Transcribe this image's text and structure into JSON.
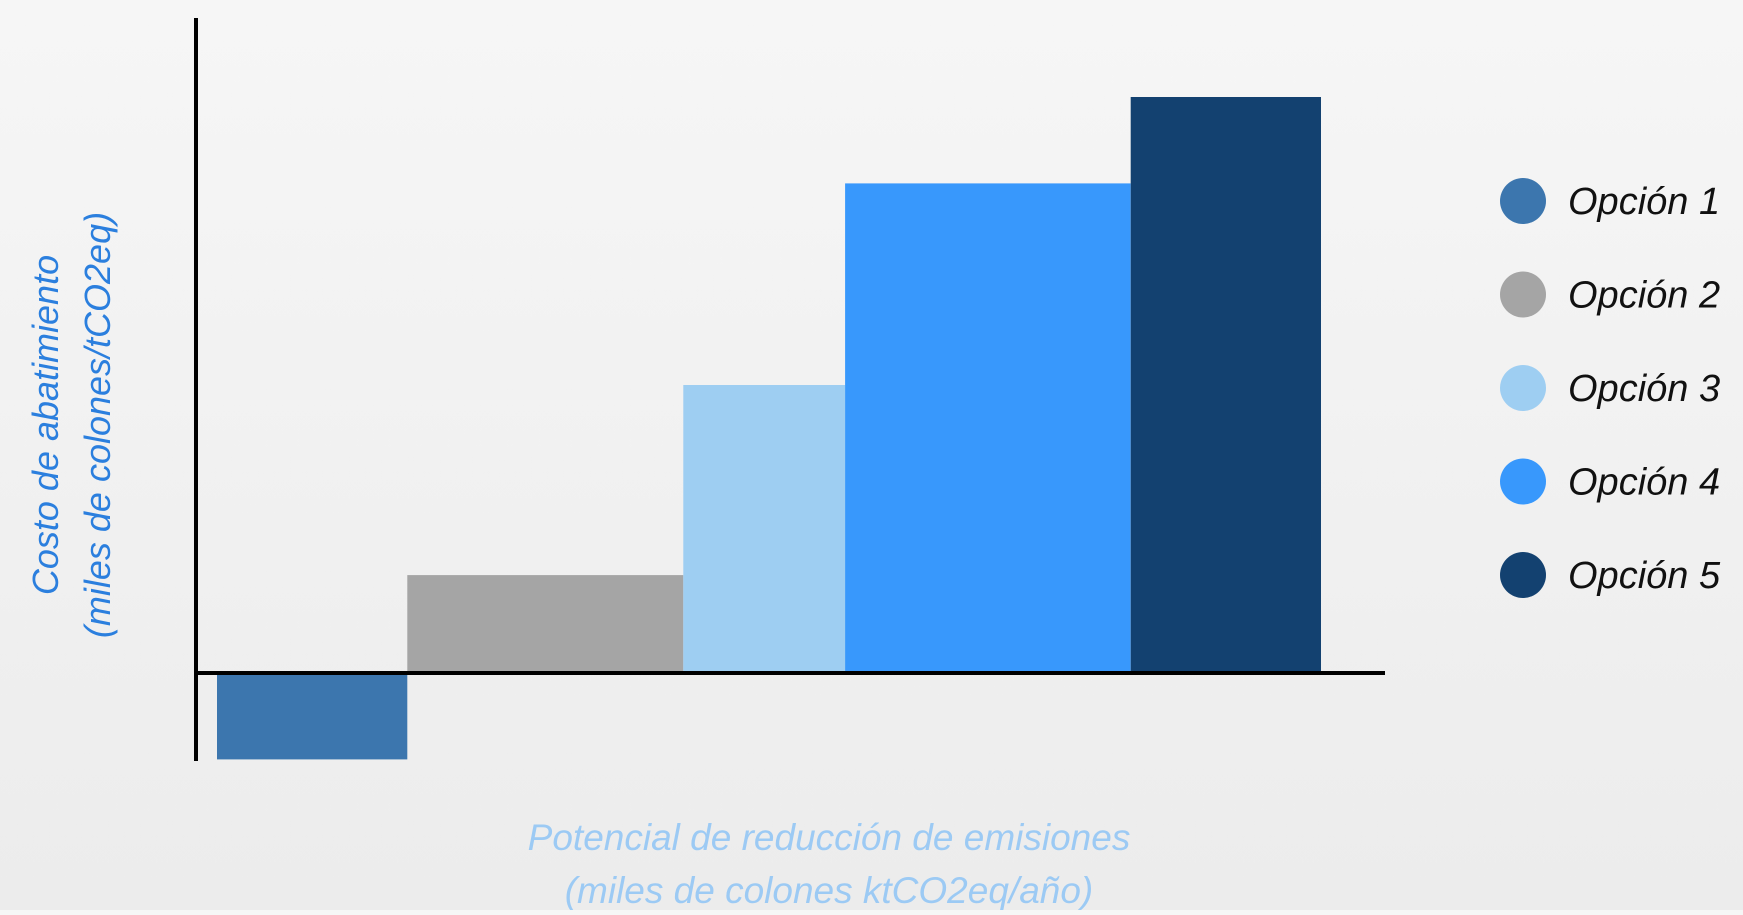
{
  "chart_data": {
    "type": "bar",
    "subtype": "marginal-abatement-cost-curve",
    "xlabel_lines": [
      "Potencial de reducción de emisiones",
      "(miles de colones ktCO2eq/año)"
    ],
    "ylabel_lines": [
      "Costo de abatimiento",
      "(miles de colones/tCO2eq)"
    ],
    "x_tick_labels": [],
    "y_tick_labels": [],
    "grid": false,
    "legend_position": "right",
    "ylim": [
      -1.5,
      10
    ],
    "series": [
      {
        "name": "Opción 1",
        "width": 2.0,
        "value": -1.5,
        "color": "#3c76ae"
      },
      {
        "name": "Opción 2",
        "width": 2.9,
        "value": 1.7,
        "color": "#a5a5a5"
      },
      {
        "name": "Opción 3",
        "width": 1.7,
        "value": 5.0,
        "color": "#9ecef2"
      },
      {
        "name": "Opción 4",
        "width": 3.0,
        "value": 8.5,
        "color": "#3898fc"
      },
      {
        "name": "Opción 5",
        "width": 2.0,
        "value": 10.0,
        "color": "#134170"
      }
    ],
    "colors": {
      "axis": "#000000",
      "xlabel": "#9ccaf4",
      "ylabel": "#2b7fde",
      "legend_text": "#111111"
    }
  }
}
